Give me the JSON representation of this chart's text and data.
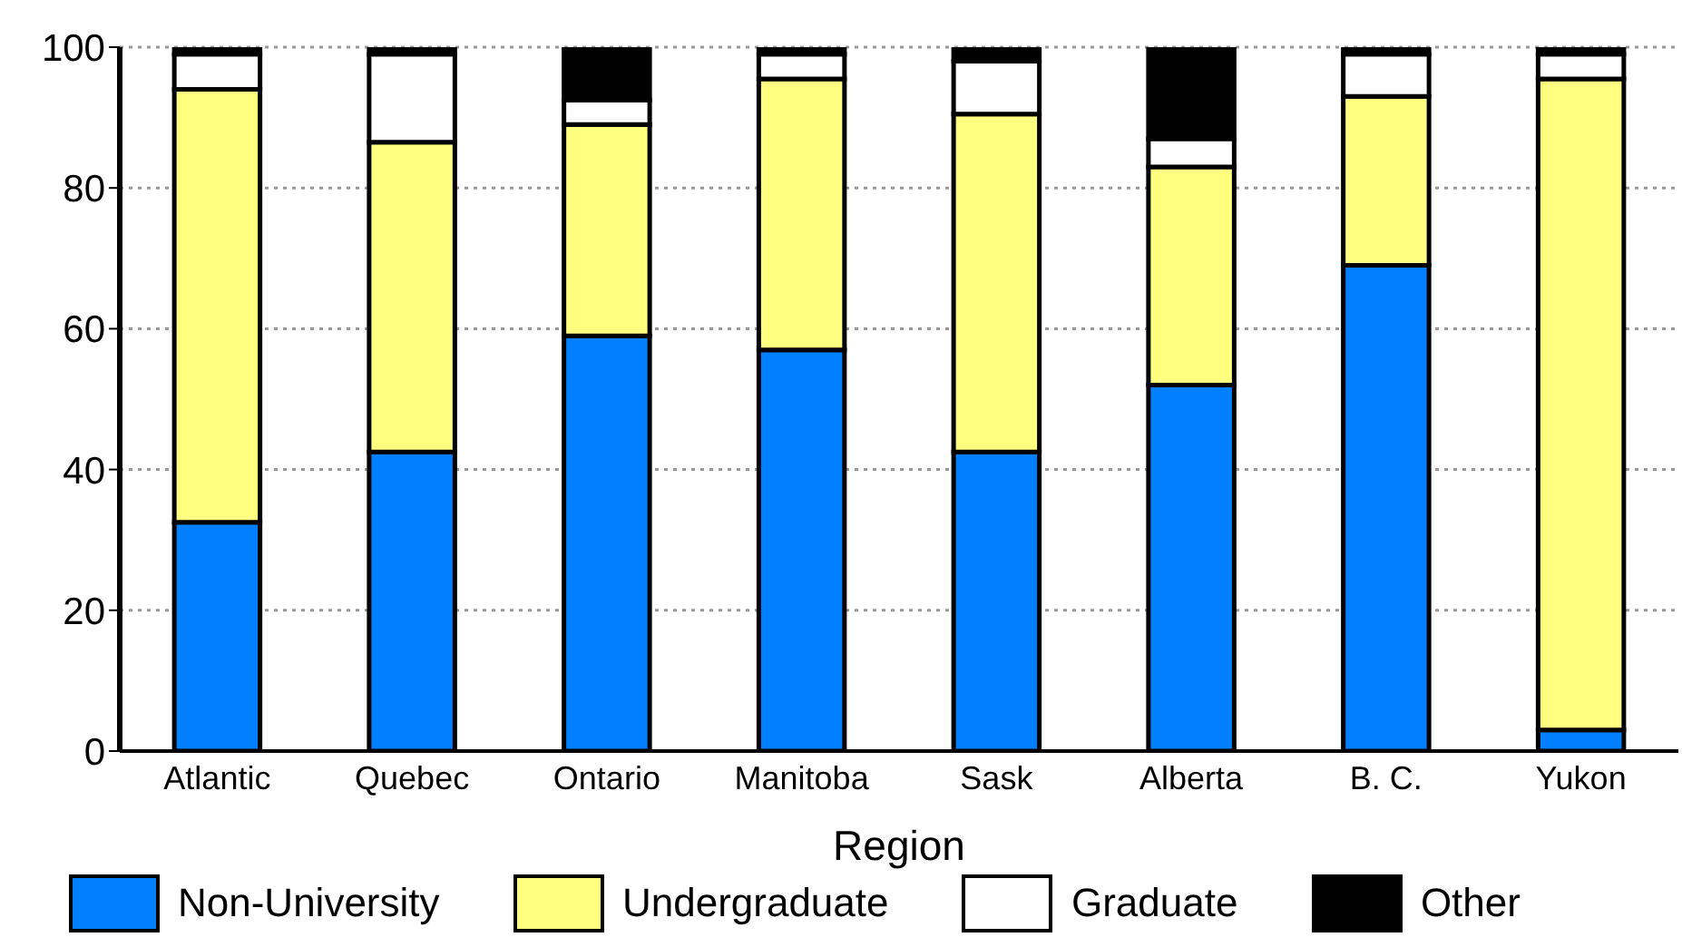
{
  "chart_data": {
    "type": "bar",
    "stacked": true,
    "xlabel": "Region",
    "categories": [
      "Atlantic",
      "Quebec",
      "Ontario",
      "Manitoba",
      "Sask",
      "Alberta",
      "B. C.",
      "Yukon"
    ],
    "series": [
      {
        "name": "Non-University",
        "color": "#0080ff",
        "values": [
          32.5,
          42.5,
          59,
          57,
          42.5,
          52,
          69,
          3
        ]
      },
      {
        "name": "Undergraduate",
        "color": "#ffff80",
        "values": [
          61.5,
          44,
          30,
          38.5,
          48,
          31,
          24,
          92.5
        ]
      },
      {
        "name": "Graduate",
        "color": "#ffffff",
        "values": [
          5,
          12.5,
          3.5,
          3.5,
          7.5,
          4,
          6,
          3.5
        ]
      },
      {
        "name": "Other",
        "color": "#000000",
        "values": [
          1,
          1,
          7.5,
          1,
          2,
          13,
          1,
          1
        ]
      }
    ],
    "ylim": [
      0,
      100
    ],
    "yticks": [
      0,
      20,
      40,
      60,
      80,
      100
    ],
    "grid": "y",
    "legend": "bottom"
  }
}
